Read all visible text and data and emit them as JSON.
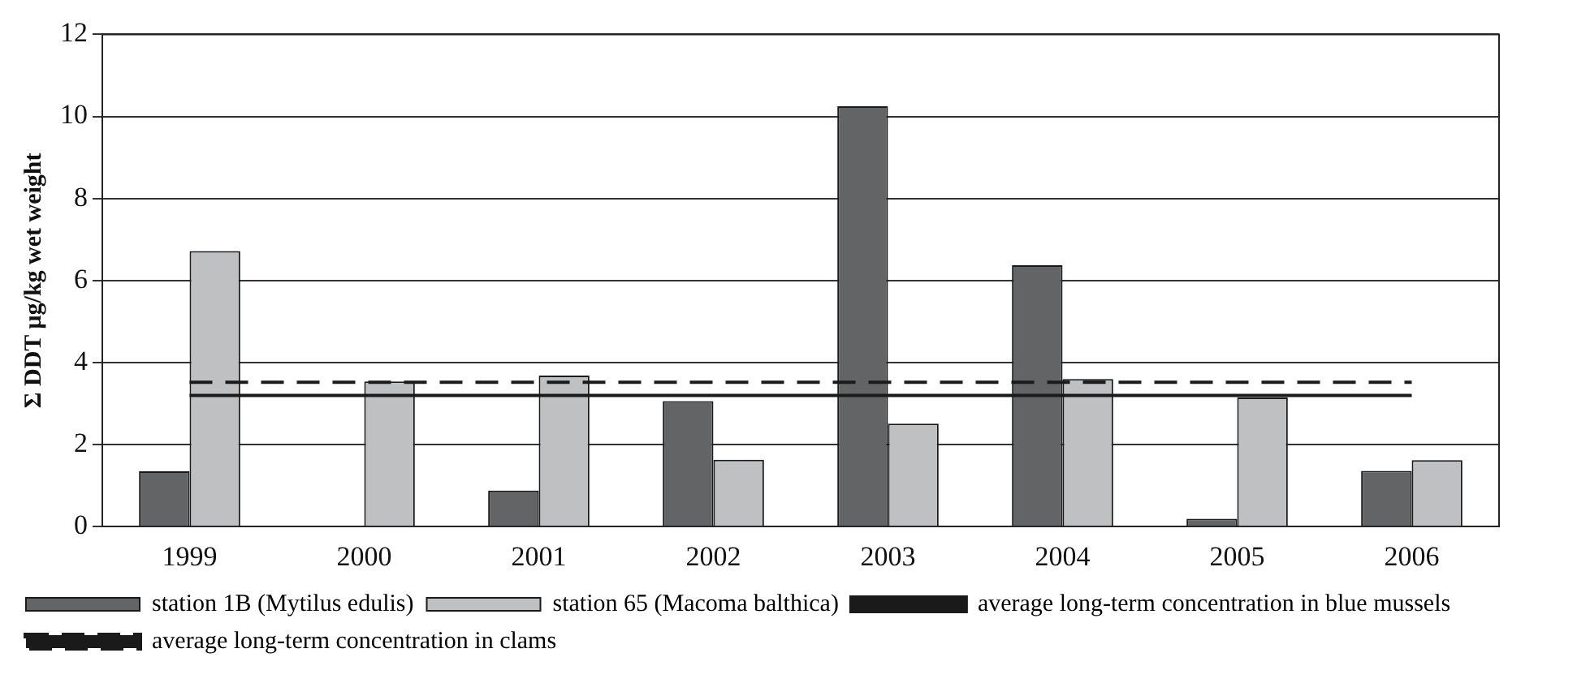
{
  "chart_data": {
    "type": "bar",
    "ylabel": "Σ DDT µg/kg wet weight",
    "categories": [
      "1999",
      "2000",
      "2001",
      "2002",
      "2003",
      "2004",
      "2005",
      "2006"
    ],
    "series": [
      {
        "name": "station 1B (Mytilus edulis)",
        "color": "#636466",
        "values": [
          1.35,
          null,
          0.88,
          3.06,
          10.25,
          6.37,
          0.19,
          1.36
        ]
      },
      {
        "name": "station 65 (Macoma balthica)",
        "color": "#bfc0c2",
        "values": [
          6.72,
          3.54,
          3.68,
          1.63,
          2.51,
          3.6,
          3.15,
          1.62
        ]
      },
      {
        "name": "average long-term concentration in blue mussels",
        "type": "line",
        "color": "#1a1a1a",
        "line_style": "solid",
        "values": [
          3.2,
          3.2,
          3.2,
          3.2,
          3.2,
          3.2,
          3.2,
          3.2
        ]
      },
      {
        "name": "average long-term concentration in clams",
        "type": "line",
        "color": "#1a1a1a",
        "line_style": "dashed",
        "values": [
          3.52,
          3.52,
          3.52,
          3.52,
          3.52,
          3.52,
          3.52,
          3.52
        ]
      }
    ],
    "ylim": [
      0,
      12
    ],
    "yticks": [
      0,
      2,
      4,
      6,
      8,
      10,
      12
    ],
    "grid": "y",
    "legend": "bottom",
    "marker": "none"
  }
}
